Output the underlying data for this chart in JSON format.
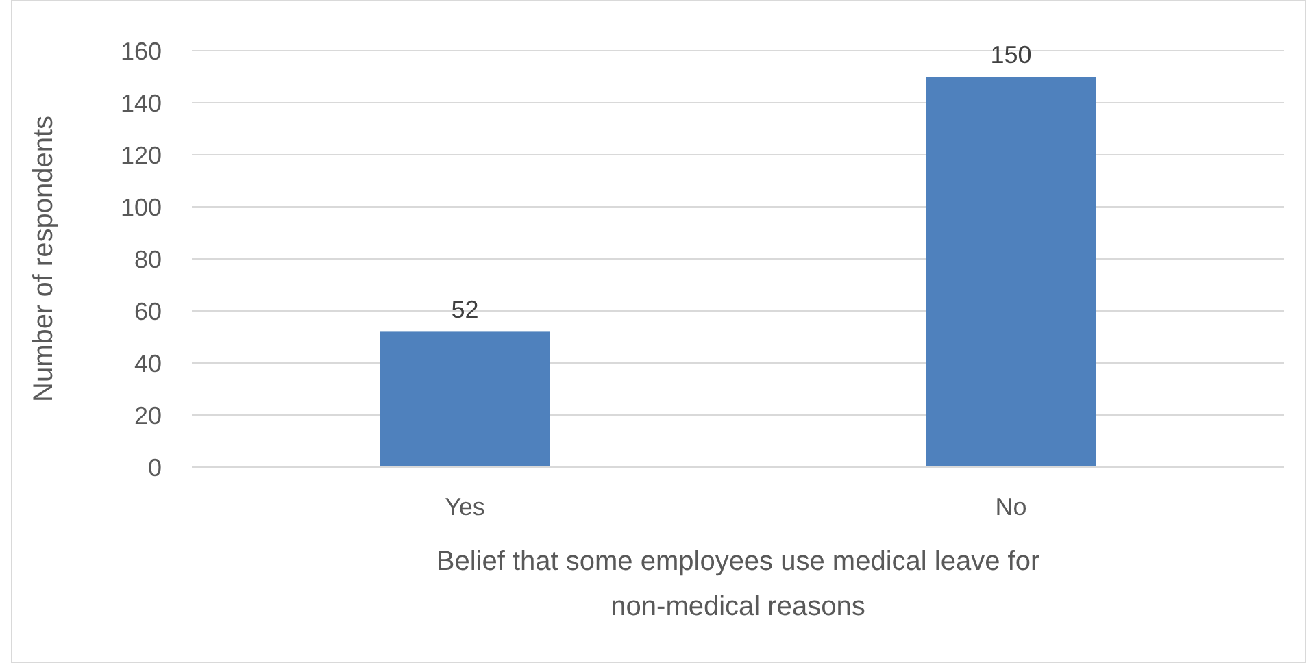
{
  "chart_data": {
    "type": "bar",
    "xlabel": "Belief that some employees use medical leave for non-medical reasons",
    "ylabel": "Number of respondents",
    "categories": [
      "Yes",
      "No"
    ],
    "values": [
      52,
      150
    ],
    "color": "#4f81bd",
    "ylim": [
      0,
      160
    ],
    "yticks": [
      0,
      20,
      40,
      60,
      80,
      100,
      120,
      140,
      160
    ],
    "grid": "y",
    "data_labels": true
  }
}
